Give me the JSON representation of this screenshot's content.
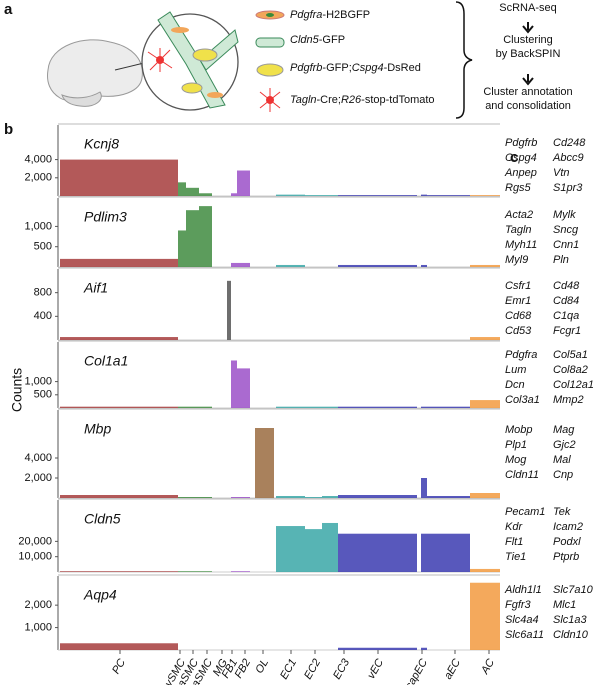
{
  "panel_labels": {
    "a": "a",
    "b": "b",
    "c": "c"
  },
  "panel_a": {
    "legend": [
      [
        {
          "text": "Pdgfra",
          "italic": true
        },
        {
          "text": "-H2BGFP",
          "italic": false
        }
      ],
      [
        {
          "text": "Cldn5",
          "italic": true
        },
        {
          "text": "-GFP",
          "italic": false
        }
      ],
      [
        {
          "text": "Pdgfrb",
          "italic": true
        },
        {
          "text": "-GFP;",
          "italic": false
        },
        {
          "text": "Cspg4",
          "italic": true
        },
        {
          "text": "-DsRed",
          "italic": false
        }
      ],
      [
        {
          "text": "Tagln",
          "italic": true
        },
        {
          "text": "-Cre;",
          "italic": false
        },
        {
          "text": "R26",
          "italic": true
        },
        {
          "text": "-stop-tdTomato",
          "italic": false
        }
      ]
    ],
    "pipeline": [
      "ScRNA-seq",
      [
        "Clustering",
        "by BackSPIN"
      ],
      [
        "Cluster annotation",
        "and consolidation"
      ]
    ]
  },
  "y_label": "Counts",
  "x_categories": [
    "PC",
    "vSMC",
    "aaSMC",
    "aSMC",
    "MG",
    "FB1",
    "FB2",
    "OL",
    "EC1",
    "EC2",
    "EC3",
    "vEC",
    "capEC",
    "aEC",
    "AC"
  ],
  "cluster_colors": [
    "#a63c3c",
    "#3f8b3f",
    "#3f8b3f",
    "#3f8b3f",
    "#555555",
    "#9b50c8",
    "#9b50c8",
    "#9a6b40",
    "#3aa7a7",
    "#3aa7a7",
    "#3aa7a7",
    "#3b3bb0",
    "#3b3bb0",
    "#3b3bb0",
    "#f29a40"
  ],
  "chart_data": [
    {
      "type": "bar",
      "title": "Kcnj8",
      "values": [
        4000,
        1500,
        900,
        300,
        0,
        300,
        2800,
        0,
        150,
        100,
        100,
        100,
        150,
        100,
        100
      ],
      "ylim": [
        0,
        7800
      ],
      "yticks": [
        {
          "value": 2000,
          "label": "2,000"
        },
        {
          "value": 4000,
          "label": "4,000"
        }
      ]
    },
    {
      "type": "bar",
      "title": "Pdlim3",
      "values": [
        200,
        900,
        1400,
        1500,
        0,
        100,
        100,
        0,
        50,
        0,
        0,
        50,
        50,
        0,
        50
      ],
      "ylim": [
        0,
        1700
      ],
      "yticks": [
        500,
        {
          "value": 1000,
          "label": "1,000"
        }
      ]
    },
    {
      "type": "bar",
      "title": "Aif1",
      "values": [
        50,
        0,
        0,
        0,
        1000,
        0,
        0,
        0,
        0,
        0,
        0,
        0,
        0,
        0,
        50
      ],
      "ylim": [
        0,
        1200
      ],
      "yticks": [
        400,
        800
      ]
    },
    {
      "type": "bar",
      "title": "Col1a1",
      "values": [
        50,
        50,
        50,
        50,
        0,
        1800,
        1500,
        0,
        50,
        50,
        50,
        50,
        50,
        50,
        300
      ],
      "ylim": [
        0,
        2500
      ],
      "yticks": [
        500,
        {
          "value": 1000,
          "label": "1,000"
        }
      ]
    },
    {
      "type": "bar",
      "title": "Mbp",
      "values": [
        300,
        100,
        100,
        100,
        0,
        100,
        100,
        7000,
        200,
        100,
        200,
        300,
        2000,
        200,
        500
      ],
      "ylim": [
        0,
        8800
      ],
      "yticks": [
        {
          "value": 2000,
          "label": "2,000"
        },
        {
          "value": 4000,
          "label": "4,000"
        }
      ]
    },
    {
      "type": "bar",
      "title": "Cldn5",
      "values": [
        500,
        500,
        500,
        500,
        0,
        500,
        500,
        0,
        30000,
        28000,
        32000,
        25000,
        25000,
        25000,
        2000
      ],
      "ylim": [
        0,
        47000
      ],
      "yticks": [
        {
          "value": 10000,
          "label": "10,000"
        },
        {
          "value": 20000,
          "label": "20,000"
        }
      ]
    },
    {
      "type": "bar",
      "title": "Aqp4",
      "values": [
        300,
        0,
        0,
        0,
        0,
        0,
        0,
        0,
        0,
        0,
        0,
        100,
        100,
        0,
        3000
      ],
      "ylim": [
        0,
        3300
      ],
      "yticks": [
        {
          "value": 1000,
          "label": "1,000"
        },
        {
          "value": 2000,
          "label": "2,000"
        }
      ]
    }
  ],
  "gene_lists": [
    [
      "Pdgfrb",
      "Cd248",
      "Cspg4",
      "Abcc9",
      "Anpep",
      "Vtn",
      "Rgs5",
      "S1pr3"
    ],
    [
      "Acta2",
      "Mylk",
      "Tagln",
      "Sncg",
      "Myh11",
      "Cnn1",
      "Myl9",
      "Pln"
    ],
    [
      "Csfr1",
      "Cd48",
      "Emr1",
      "Cd84",
      "Cd68",
      "C1qa",
      "Cd53",
      "Fcgr1"
    ],
    [
      "Pdgfra",
      "Col5a1",
      "Lum",
      "Col8a2",
      "Dcn",
      "Col12a1",
      "Col3a1",
      "Mmp2"
    ],
    [
      "Mobp",
      "Mag",
      "Plp1",
      "Gjc2",
      "Mog",
      "Mal",
      "Cldn11",
      "Cnp"
    ],
    [
      "Pecam1",
      "Tek",
      "Kdr",
      "Icam2",
      "Flt1",
      "Podxl",
      "Tie1",
      "Ptprb"
    ],
    [
      "Aldh1l1",
      "Slc7a10",
      "Fgfr3",
      "Mlc1",
      "Slc4a4",
      "Slc1a3",
      "Slc6a11",
      "Cldn10"
    ]
  ]
}
